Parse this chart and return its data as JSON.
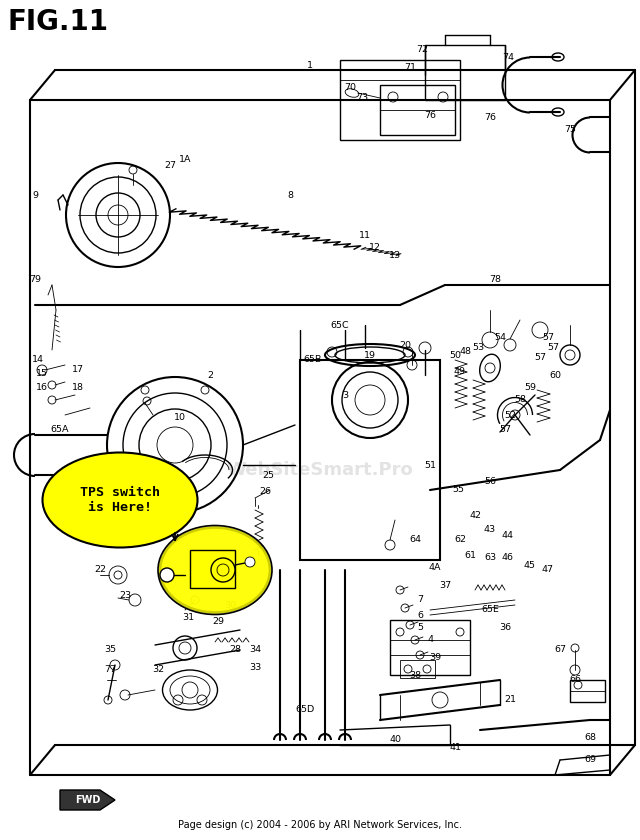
{
  "title": "FIG.11",
  "title_fontsize": 20,
  "title_fontweight": "bold",
  "bg_color": "#ffffff",
  "fig_width": 6.4,
  "fig_height": 8.4,
  "dpi": 100,
  "footer_text": "Page design (c) 2004 - 2006 by ARI Network Services, Inc.",
  "watermark_text": "WebSiteSmart.Pro",
  "tps_label": "TPS switch\nis Here!",
  "fwd_label": "FWD"
}
